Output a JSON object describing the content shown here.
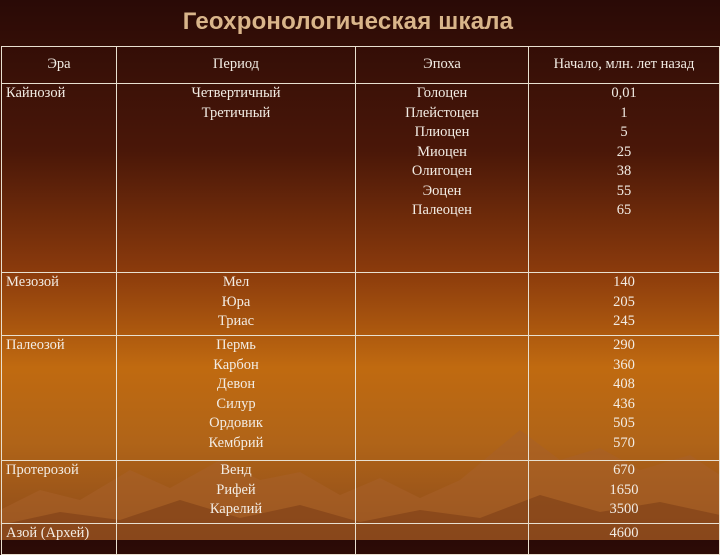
{
  "title": "Геохронологическая шкала",
  "headers": {
    "era": "Эра",
    "period": "Период",
    "epoch": "Эпоха",
    "start": "Начало, млн. лет назад"
  },
  "rows": [
    {
      "era": "Кайнозой",
      "periods": "Четвертичный\nТретичный",
      "epochs": "Голоцен\nПлейстоцен\nПлиоцен\nМиоцен\nОлигоцен\nЭоцен\nПалеоцен",
      "start": "0,01\n1\n5\n25\n38\n55\n65"
    },
    {
      "era": "Мезозой",
      "periods": "Мел\nЮра\nТриас",
      "epochs": "",
      "start": "140\n205\n245"
    },
    {
      "era": "Палеозой",
      "periods": "Пермь\nКарбон\nДевон\nСилур\nОрдовик\nКембрий",
      "epochs": "",
      "start": "290\n360\n408\n436\n505\n570"
    },
    {
      "era": "Протерозой",
      "periods": "Венд\nРифей\nКарелий",
      "epochs": "",
      "start": "670\n1650\n3500"
    },
    {
      "era": "Азой (Архей)",
      "periods": "",
      "epochs": "",
      "start": "4600"
    }
  ],
  "colors": {
    "title": "#d9b58a",
    "text": "#f2ece4",
    "border": "#e8e0d0",
    "bg_top": "#2a0a06",
    "bg_mid": "#c06a10"
  }
}
